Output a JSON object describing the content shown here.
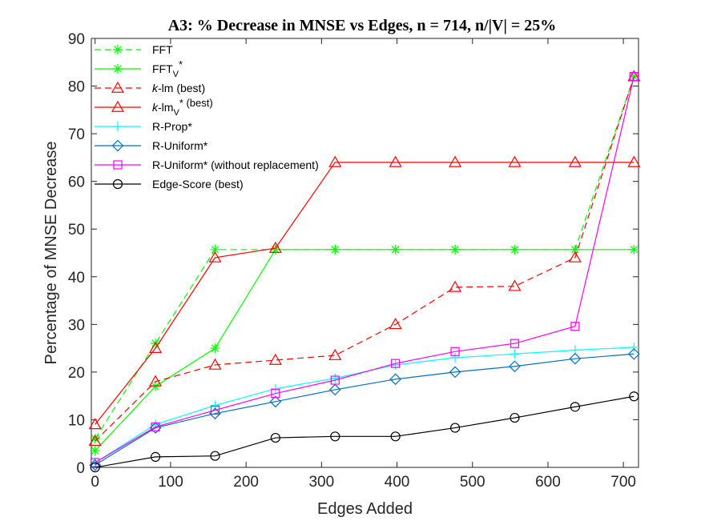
{
  "chart_data": {
    "type": "line",
    "title": "A3: % Decrease in MNSE vs Edges, n = 714, n/|V| = 25%",
    "xlabel": "Edges Added",
    "ylabel": "Percentage of MNSE Decrease",
    "xlim": [
      -5,
      720
    ],
    "ylim": [
      0,
      90
    ],
    "xticks": [
      0,
      100,
      200,
      300,
      400,
      500,
      600,
      700
    ],
    "yticks": [
      0,
      10,
      20,
      30,
      40,
      50,
      60,
      70,
      80,
      90
    ],
    "legend_position": "top-left",
    "grid": false,
    "series": [
      {
        "name": "FFT",
        "sub": "",
        "sup": "",
        "italic_prefix": "",
        "color": "#00ff00",
        "dash": "dashed",
        "marker": "asterisk",
        "x": [
          0,
          80,
          159,
          239,
          318,
          398,
          477,
          556,
          636,
          714
        ],
        "y": [
          6,
          26,
          45.7,
          45.7,
          45.7,
          45.7,
          45.7,
          45.7,
          45.7,
          82
        ]
      },
      {
        "name": "FFT",
        "sub": "V",
        "sup": "*",
        "italic_prefix": "",
        "color": "#00ff00",
        "dash": "solid",
        "marker": "asterisk",
        "x": [
          0,
          80,
          159,
          239,
          318,
          398,
          477,
          556,
          636,
          714
        ],
        "y": [
          3.5,
          17,
          25,
          45.7,
          45.7,
          45.7,
          45.7,
          45.7,
          45.7,
          45.7
        ]
      },
      {
        "name": "-lm (best)",
        "sub": "",
        "sup": "",
        "italic_prefix": "k",
        "color": "#ff0000",
        "dash": "dashed",
        "marker": "triangle",
        "x": [
          0,
          80,
          159,
          239,
          318,
          398,
          477,
          556,
          636,
          714
        ],
        "y": [
          5.5,
          18,
          21.5,
          22.5,
          23.5,
          30,
          37.8,
          38,
          44,
          82
        ]
      },
      {
        "name": "-lm",
        "sub": "V",
        "sup": "* (best)",
        "italic_prefix": "k",
        "color": "#ff0000",
        "dash": "solid",
        "marker": "triangle",
        "x": [
          0,
          80,
          159,
          239,
          318,
          398,
          477,
          556,
          636,
          714
        ],
        "y": [
          9,
          25,
          44,
          46,
          64,
          64,
          64,
          64,
          64,
          64
        ]
      },
      {
        "name": "R-Prop*",
        "sub": "",
        "sup": "",
        "italic_prefix": "",
        "color": "#00ffff",
        "dash": "solid",
        "marker": "plus",
        "x": [
          0,
          80,
          159,
          239,
          318,
          398,
          477,
          556,
          636,
          714
        ],
        "y": [
          1,
          9,
          13,
          16.5,
          18.7,
          21.5,
          23,
          23.8,
          24.6,
          25.2
        ]
      },
      {
        "name": "R-Uniform*",
        "sub": "",
        "sup": "",
        "italic_prefix": "",
        "color": "#0072bd",
        "dash": "solid",
        "marker": "diamond",
        "x": [
          0,
          80,
          159,
          239,
          318,
          398,
          477,
          556,
          636,
          714
        ],
        "y": [
          0.5,
          8.3,
          11.3,
          13.8,
          16.3,
          18.5,
          20,
          21.2,
          22.8,
          23.8
        ]
      },
      {
        "name": "R-Uniform* (without replacement)",
        "sub": "",
        "sup": "",
        "italic_prefix": "",
        "color": "#ff00ff",
        "dash": "solid",
        "marker": "square",
        "x": [
          0,
          80,
          159,
          239,
          318,
          398,
          477,
          556,
          636,
          714
        ],
        "y": [
          1,
          8.5,
          12,
          15.5,
          18.3,
          21.8,
          24.3,
          26,
          29.6,
          82
        ]
      },
      {
        "name": "Edge-Score (best)",
        "sub": "",
        "sup": "",
        "italic_prefix": "",
        "color": "#000000",
        "dash": "solid",
        "marker": "circle",
        "x": [
          0,
          80,
          159,
          239,
          318,
          398,
          477,
          556,
          636,
          714
        ],
        "y": [
          0,
          2.2,
          2.4,
          6.2,
          6.5,
          6.5,
          8.3,
          10.4,
          12.7,
          14.9
        ]
      }
    ]
  }
}
